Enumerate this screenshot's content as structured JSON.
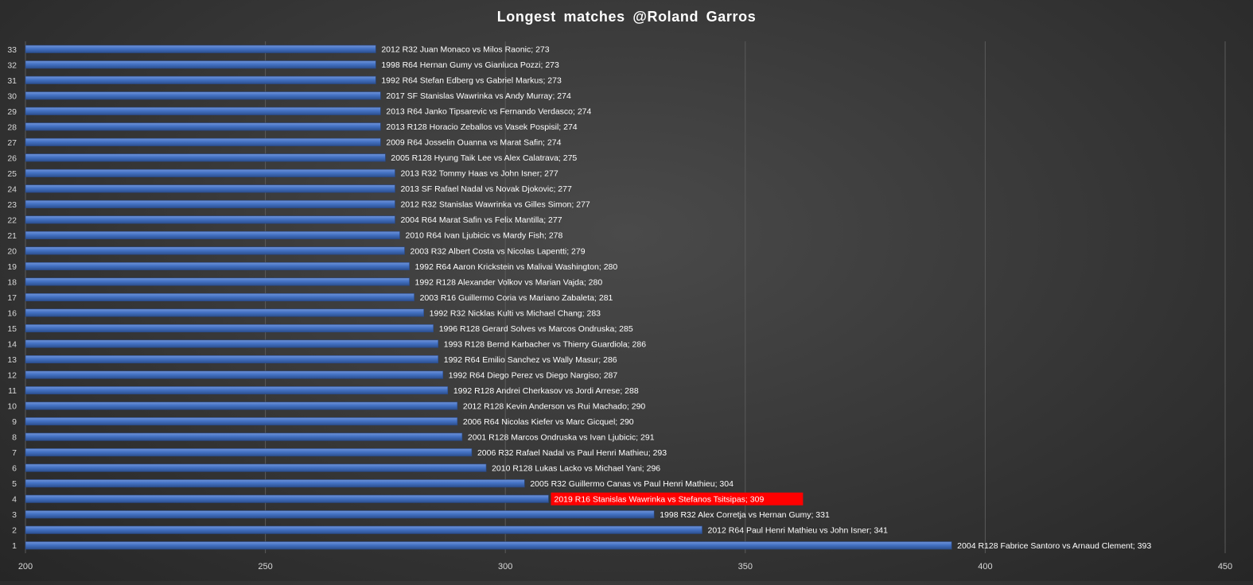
{
  "chart_data": {
    "type": "bar",
    "orientation": "horizontal",
    "title": "Longest  matches  @Roland  Garros",
    "xlabel": "",
    "ylabel": "",
    "xlim": [
      200,
      450
    ],
    "x_ticks": [
      200,
      250,
      300,
      350,
      400,
      450
    ],
    "grid": "vertical",
    "legend": "none",
    "colors": {
      "bar": "#4472c4",
      "bar_light": "#6f93d8",
      "bar_dark": "#2c4f8f",
      "highlight_bg": "#ff0000",
      "label_text": "#ffffff",
      "axis_text": "#d9d9d9",
      "grid": "#5a5a5a"
    },
    "bars": [
      {
        "rank": "1",
        "value": 393,
        "label": "2004 R128 Fabrice Santoro vs Arnaud Clement; 393"
      },
      {
        "rank": "2",
        "value": 341,
        "label": "2012 R64 Paul Henri Mathieu vs John Isner; 341"
      },
      {
        "rank": "3",
        "value": 331,
        "label": "1998 R32 Alex Corretja vs Hernan Gumy; 331"
      },
      {
        "rank": "4",
        "value": 309,
        "label": "2019 R16 Stanislas Wawrinka vs Stefanos Tsitsipas; 309",
        "highlight": true
      },
      {
        "rank": "5",
        "value": 304,
        "label": "2005 R32 Guillermo Canas vs Paul Henri Mathieu; 304"
      },
      {
        "rank": "6",
        "value": 296,
        "label": "2010 R128 Lukas Lacko vs Michael Yani; 296"
      },
      {
        "rank": "7",
        "value": 293,
        "label": "2006 R32 Rafael Nadal vs Paul Henri Mathieu; 293"
      },
      {
        "rank": "8",
        "value": 291,
        "label": "2001 R128 Marcos Ondruska vs Ivan Ljubicic; 291"
      },
      {
        "rank": "9",
        "value": 290,
        "label": "2006 R64 Nicolas Kiefer vs Marc Gicquel; 290"
      },
      {
        "rank": "10",
        "value": 290,
        "label": "2012 R128 Kevin Anderson vs Rui Machado; 290"
      },
      {
        "rank": "11",
        "value": 288,
        "label": "1992 R128 Andrei Cherkasov vs Jordi Arrese; 288"
      },
      {
        "rank": "12",
        "value": 287,
        "label": "1992 R64 Diego Perez vs Diego Nargiso; 287"
      },
      {
        "rank": "13",
        "value": 286,
        "label": "1992 R64 Emilio Sanchez vs Wally Masur; 286"
      },
      {
        "rank": "14",
        "value": 286,
        "label": "1993 R128 Bernd Karbacher vs Thierry Guardiola; 286"
      },
      {
        "rank": "15",
        "value": 285,
        "label": "1996 R128 Gerard Solves vs Marcos Ondruska; 285"
      },
      {
        "rank": "16",
        "value": 283,
        "label": "1992 R32 Nicklas Kulti vs Michael Chang; 283"
      },
      {
        "rank": "17",
        "value": 281,
        "label": "2003 R16 Guillermo Coria vs Mariano Zabaleta; 281"
      },
      {
        "rank": "18",
        "value": 280,
        "label": "1992 R128 Alexander Volkov vs Marian Vajda; 280"
      },
      {
        "rank": "19",
        "value": 280,
        "label": "1992 R64 Aaron Krickstein vs Malivai Washington; 280"
      },
      {
        "rank": "20",
        "value": 279,
        "label": "2003 R32 Albert Costa vs Nicolas Lapentti; 279"
      },
      {
        "rank": "21",
        "value": 278,
        "label": "2010 R64 Ivan Ljubicic vs Mardy Fish; 278"
      },
      {
        "rank": "22",
        "value": 277,
        "label": "2004 R64 Marat Safin vs Felix Mantilla; 277"
      },
      {
        "rank": "23",
        "value": 277,
        "label": "2012 R32 Stanislas Wawrinka vs Gilles Simon; 277"
      },
      {
        "rank": "24",
        "value": 277,
        "label": "2013 SF Rafael Nadal vs Novak Djokovic; 277"
      },
      {
        "rank": "25",
        "value": 277,
        "label": "2013 R32 Tommy Haas vs John Isner; 277"
      },
      {
        "rank": "26",
        "value": 275,
        "label": "2005 R128 Hyung Taik Lee vs Alex Calatrava; 275"
      },
      {
        "rank": "27",
        "value": 274,
        "label": "2009 R64 Josselin Ouanna vs Marat Safin; 274"
      },
      {
        "rank": "28",
        "value": 274,
        "label": "2013 R128 Horacio Zeballos vs Vasek Pospisil; 274"
      },
      {
        "rank": "29",
        "value": 274,
        "label": "2013 R64 Janko Tipsarevic vs Fernando Verdasco; 274"
      },
      {
        "rank": "30",
        "value": 274,
        "label": "2017 SF Stanislas Wawrinka vs Andy Murray; 274"
      },
      {
        "rank": "31",
        "value": 273,
        "label": "1992 R64 Stefan Edberg vs Gabriel Markus; 273"
      },
      {
        "rank": "32",
        "value": 273,
        "label": "1998 R64 Hernan Gumy vs Gianluca Pozzi; 273"
      },
      {
        "rank": "33",
        "value": 273,
        "label": "2012 R32 Juan Monaco vs Milos Raonic; 273"
      }
    ]
  }
}
